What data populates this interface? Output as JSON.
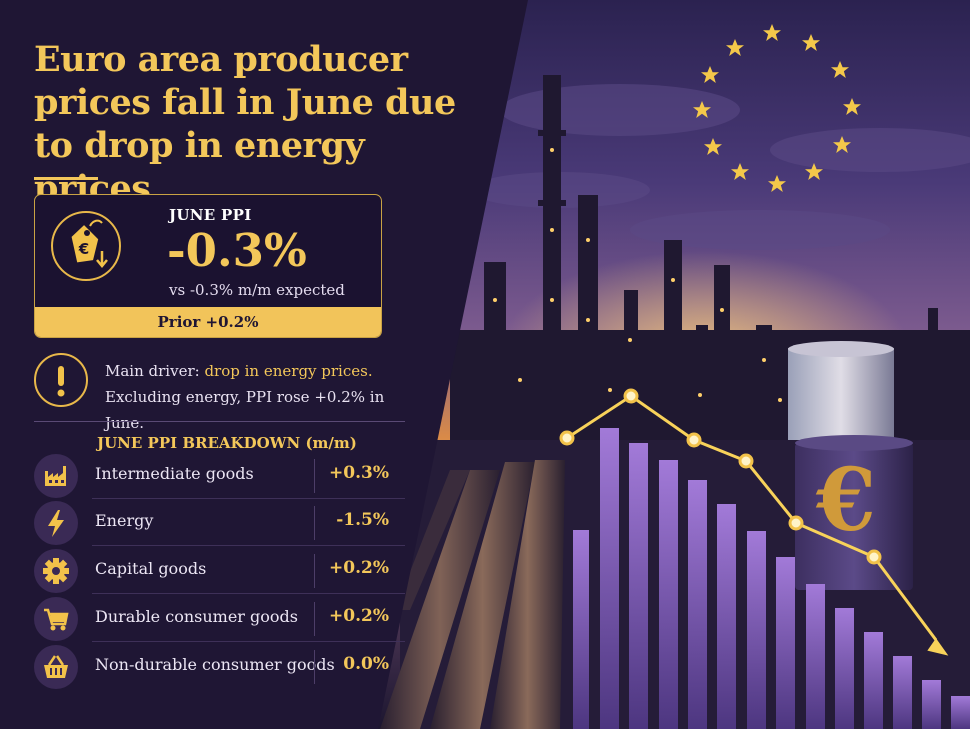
{
  "header": {
    "title": "Euro area producer prices fall in June due to drop in energy prices"
  },
  "ppi_card": {
    "label": "JUNE PPI",
    "value": "-0.3%",
    "expected": "vs -0.3% m/m expected",
    "prior": "Prior +0.2%",
    "icon": "euro-price-tag-down-icon"
  },
  "driver": {
    "icon": "exclamation-icon",
    "prefix": "Main driver: ",
    "highlight": "drop in energy prices.",
    "detail": "Excluding energy, PPI rose +0.2% in June."
  },
  "breakdown": {
    "title": "JUNE PPI BREAKDOWN (m/m)",
    "rows": [
      {
        "icon": "factory-icon",
        "label": "Intermediate goods",
        "value": "+0.3%"
      },
      {
        "icon": "lightning-icon",
        "label": "Energy",
        "value": "-1.5%"
      },
      {
        "icon": "gear-icon",
        "label": "Capital goods",
        "value": "+0.2%"
      },
      {
        "icon": "shopping-cart-icon",
        "label": "Durable consumer goods",
        "value": "+0.2%"
      },
      {
        "icon": "basket-icon",
        "label": "Non-durable consumer goods",
        "value": "0.0%"
      }
    ]
  },
  "scene": {
    "euro_symbol": "€",
    "stars_count": 12
  },
  "colors": {
    "accent": "#f3c75a",
    "panel": "#1e1533",
    "purple_bar": "#8a62c8",
    "sky_orange": "#f1a33a"
  }
}
